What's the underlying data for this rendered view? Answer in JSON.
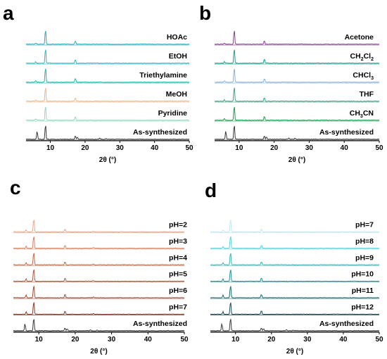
{
  "chart_data": [
    {
      "panel": "a",
      "type": "line",
      "xlabel": "2θ (°)",
      "ylabel": "",
      "xlim": [
        3,
        50
      ],
      "xticks": [
        10,
        20,
        30,
        40,
        50
      ],
      "series": [
        {
          "name": "HOAc",
          "color": "#2aa8c9",
          "peaks": [
            [
              8.6,
              1.0
            ],
            [
              17.2,
              0.22
            ],
            [
              5.8,
              0.08
            ]
          ]
        },
        {
          "name": "EtOH",
          "color": "#2ab7c5",
          "peaks": [
            [
              8.6,
              1.0
            ],
            [
              17.2,
              0.25
            ],
            [
              5.8,
              0.1
            ]
          ]
        },
        {
          "name": "Triethylamine",
          "color": "#26b2aa",
          "peaks": [
            [
              8.6,
              1.0
            ],
            [
              17.2,
              0.28
            ],
            [
              5.8,
              0.12
            ]
          ]
        },
        {
          "name": "MeOH",
          "color": "#f3b485",
          "peaks": [
            [
              8.6,
              1.0
            ],
            [
              17.2,
              0.22
            ],
            [
              5.8,
              0.08
            ]
          ]
        },
        {
          "name": "Pyridine",
          "color": "#8fd8bd",
          "peaks": [
            [
              8.6,
              1.0
            ],
            [
              17.2,
              0.25
            ],
            [
              5.8,
              0.1
            ]
          ]
        },
        {
          "name": "As-synthesized",
          "color": "#3a3a3a",
          "peaks": [
            [
              6.2,
              0.55
            ],
            [
              8.6,
              1.0
            ],
            [
              17.2,
              0.22
            ],
            [
              17.8,
              0.15
            ],
            [
              24.2,
              0.08
            ],
            [
              26.0,
              0.06
            ]
          ]
        }
      ]
    },
    {
      "panel": "b",
      "type": "line",
      "xlabel": "2θ (°)",
      "ylabel": "",
      "xlim": [
        3,
        50
      ],
      "xticks": [
        10,
        20,
        30,
        40,
        50
      ],
      "series": [
        {
          "name": "Acetone",
          "color": "#8a3f93",
          "peaks": [
            [
              8.6,
              1.0
            ],
            [
              17.2,
              0.25
            ],
            [
              5.8,
              0.08
            ]
          ]
        },
        {
          "name": "CH2Cl2",
          "label_parts": [
            "CH",
            "2",
            "Cl",
            "2"
          ],
          "color": "#1a9c8c",
          "peaks": [
            [
              8.6,
              1.0
            ],
            [
              17.2,
              0.28
            ],
            [
              5.8,
              0.1
            ]
          ]
        },
        {
          "name": "CHCl3",
          "label_parts": [
            "CHCl",
            "3"
          ],
          "color": "#86b2d8",
          "peaks": [
            [
              8.6,
              1.0
            ],
            [
              17.2,
              0.25
            ],
            [
              5.8,
              0.1
            ]
          ]
        },
        {
          "name": "THF",
          "color": "#3d9f86",
          "peaks": [
            [
              8.6,
              1.0
            ],
            [
              17.2,
              0.25
            ],
            [
              5.8,
              0.1
            ]
          ]
        },
        {
          "name": "CH3CN",
          "label_parts": [
            "CH",
            "3",
            "CN"
          ],
          "color": "#1e9a4b",
          "peaks": [
            [
              8.6,
              1.0
            ],
            [
              17.2,
              0.28
            ],
            [
              5.8,
              0.12
            ]
          ]
        },
        {
          "name": "As-synthesized",
          "color": "#3a3a3a",
          "peaks": [
            [
              6.2,
              0.55
            ],
            [
              8.6,
              1.0
            ],
            [
              17.2,
              0.22
            ],
            [
              17.8,
              0.15
            ],
            [
              24.2,
              0.08
            ],
            [
              26.0,
              0.06
            ]
          ]
        }
      ]
    },
    {
      "panel": "c",
      "type": "line",
      "xlabel": "2θ (°)",
      "ylabel": "",
      "xlim": [
        3,
        50
      ],
      "xticks": [
        10,
        20,
        30,
        40,
        50
      ],
      "series": [
        {
          "name": "pH=2",
          "color": "#e8a68a",
          "peaks": [
            [
              8.6,
              1.0
            ],
            [
              17.2,
              0.22
            ],
            [
              6.5,
              0.12
            ],
            [
              25.0,
              0.06
            ]
          ]
        },
        {
          "name": "pH=3",
          "color": "#d48463",
          "peaks": [
            [
              8.6,
              1.0
            ],
            [
              17.2,
              0.25
            ],
            [
              6.5,
              0.15
            ],
            [
              25.0,
              0.06
            ]
          ]
        },
        {
          "name": "pH=4",
          "color": "#c06a49",
          "peaks": [
            [
              8.6,
              1.0
            ],
            [
              17.2,
              0.25
            ],
            [
              6.5,
              0.15
            ],
            [
              25.0,
              0.06
            ]
          ]
        },
        {
          "name": "pH=5",
          "color": "#ad5a3e",
          "peaks": [
            [
              8.6,
              1.0
            ],
            [
              17.2,
              0.25
            ],
            [
              6.5,
              0.18
            ],
            [
              25.0,
              0.07
            ]
          ]
        },
        {
          "name": "pH=6",
          "color": "#a04d33",
          "peaks": [
            [
              8.6,
              1.0
            ],
            [
              17.2,
              0.28
            ],
            [
              6.5,
              0.2
            ],
            [
              25.0,
              0.07
            ]
          ]
        },
        {
          "name": "pH=7",
          "color": "#8a3a26",
          "peaks": [
            [
              8.6,
              1.0
            ],
            [
              17.2,
              0.25
            ],
            [
              6.5,
              0.18
            ],
            [
              25.0,
              0.07
            ]
          ]
        },
        {
          "name": "As-synthesized",
          "color": "#3a3a3a",
          "peaks": [
            [
              6.2,
              0.55
            ],
            [
              8.6,
              1.0
            ],
            [
              17.2,
              0.22
            ],
            [
              17.8,
              0.15
            ],
            [
              24.2,
              0.08
            ],
            [
              26.0,
              0.06
            ]
          ]
        }
      ]
    },
    {
      "panel": "d",
      "type": "line",
      "xlabel": "2θ (°)",
      "ylabel": "",
      "xlim": [
        3,
        50
      ],
      "xticks": [
        10,
        20,
        30,
        40,
        50
      ],
      "series": [
        {
          "name": "pH=7",
          "color": "#c3e7ef",
          "peaks": [
            [
              8.6,
              1.0
            ],
            [
              17.2,
              0.22
            ],
            [
              6.5,
              0.1
            ]
          ]
        },
        {
          "name": "pH=8",
          "color": "#5fd0d8",
          "peaks": [
            [
              8.6,
              1.0
            ],
            [
              17.2,
              0.25
            ],
            [
              6.5,
              0.12
            ]
          ]
        },
        {
          "name": "pH=9",
          "color": "#3fb3b5",
          "peaks": [
            [
              8.6,
              1.0
            ],
            [
              17.2,
              0.25
            ],
            [
              6.5,
              0.15
            ]
          ]
        },
        {
          "name": "pH=10",
          "color": "#2a8f95",
          "peaks": [
            [
              8.6,
              1.0
            ],
            [
              17.2,
              0.28
            ],
            [
              6.5,
              0.18
            ]
          ]
        },
        {
          "name": "pH=11",
          "color": "#1f6b72",
          "peaks": [
            [
              8.6,
              1.0
            ],
            [
              17.2,
              0.28
            ],
            [
              6.5,
              0.2
            ]
          ]
        },
        {
          "name": "pH=12",
          "color": "#1c4a50",
          "peaks": [
            [
              8.6,
              1.0
            ],
            [
              17.2,
              0.28
            ],
            [
              6.5,
              0.2
            ]
          ]
        },
        {
          "name": "As-synthesized",
          "color": "#3a3a3a",
          "peaks": [
            [
              6.2,
              0.55
            ],
            [
              8.6,
              1.0
            ],
            [
              17.2,
              0.22
            ],
            [
              17.8,
              0.15
            ],
            [
              24.2,
              0.08
            ],
            [
              26.0,
              0.06
            ]
          ]
        }
      ]
    }
  ]
}
